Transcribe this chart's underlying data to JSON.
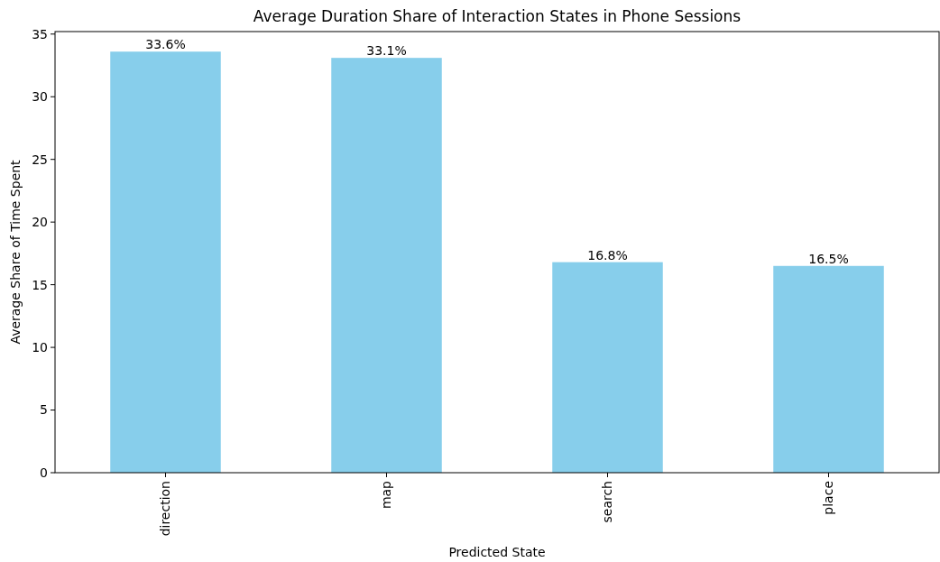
{
  "chart_data": {
    "type": "bar",
    "title": "Average Duration Share of Interaction States in Phone Sessions",
    "xlabel": "Predicted State",
    "ylabel": "Average Share of Time Spent",
    "categories": [
      "direction",
      "map",
      "search",
      "place"
    ],
    "values": [
      33.6,
      33.1,
      16.8,
      16.5
    ],
    "value_labels": [
      "33.6%",
      "33.1%",
      "16.8%",
      "16.5%"
    ],
    "color": "#87ceeb",
    "ylim": [
      0,
      35.2
    ],
    "yticks": [
      0,
      5,
      10,
      15,
      20,
      25,
      30,
      35
    ],
    "grid": false
  }
}
